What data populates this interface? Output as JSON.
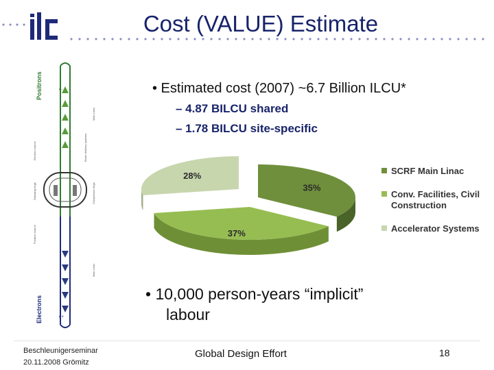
{
  "slide": {
    "logo_text": "ilc",
    "title": "Cost (VALUE) Estimate"
  },
  "diagram": {
    "positrons_label": "Positrons",
    "electrons_label": "Electrons",
    "electron_source": "Electron source",
    "damping_rings": "Damping rings",
    "positron_source": "Positron source",
    "main_linac_top": "Main Linac",
    "beam_delivery": "Beam delivery systems",
    "positron_ring": "Compressor rings",
    "main_linac_bottom": "Main Linac",
    "e_minus_top": "e-",
    "e_plus_bottom": "e+"
  },
  "bullets": {
    "main": "• Estimated cost (2007) ~6.7 Billion ILCU*",
    "sub1": "– 4.87 BILCU shared",
    "sub2": "– 1.78 BILCU site-specific",
    "labour_line1": "• 10,000 person-years “implicit”",
    "labour_line2": "labour"
  },
  "chart_data": {
    "type": "pie",
    "categories": [
      "SCRF Main Linac",
      "Conv. Facilities, Civil Construction",
      "Accelerator Systems"
    ],
    "values": [
      35,
      37,
      28
    ],
    "labels": [
      "35%",
      "37%",
      "28%"
    ],
    "colors": [
      "#6f8f3c",
      "#96bd52",
      "#c8d6ae"
    ],
    "side_colors": [
      "#4a6328",
      "#6f8f36",
      "#a3b089"
    ],
    "legend_lines": [
      [
        "SCRF Main Linac"
      ],
      [
        "Conv. Facilities, Civil",
        "Construction"
      ],
      [
        "Accelerator Systems"
      ]
    ],
    "legend_position": "right",
    "style": "3d"
  },
  "footer": {
    "event_line1": "Beschleunigerseminar",
    "event_line2": "20.11.2008  Grömitz",
    "center": "Global Design Effort",
    "page": "18"
  }
}
